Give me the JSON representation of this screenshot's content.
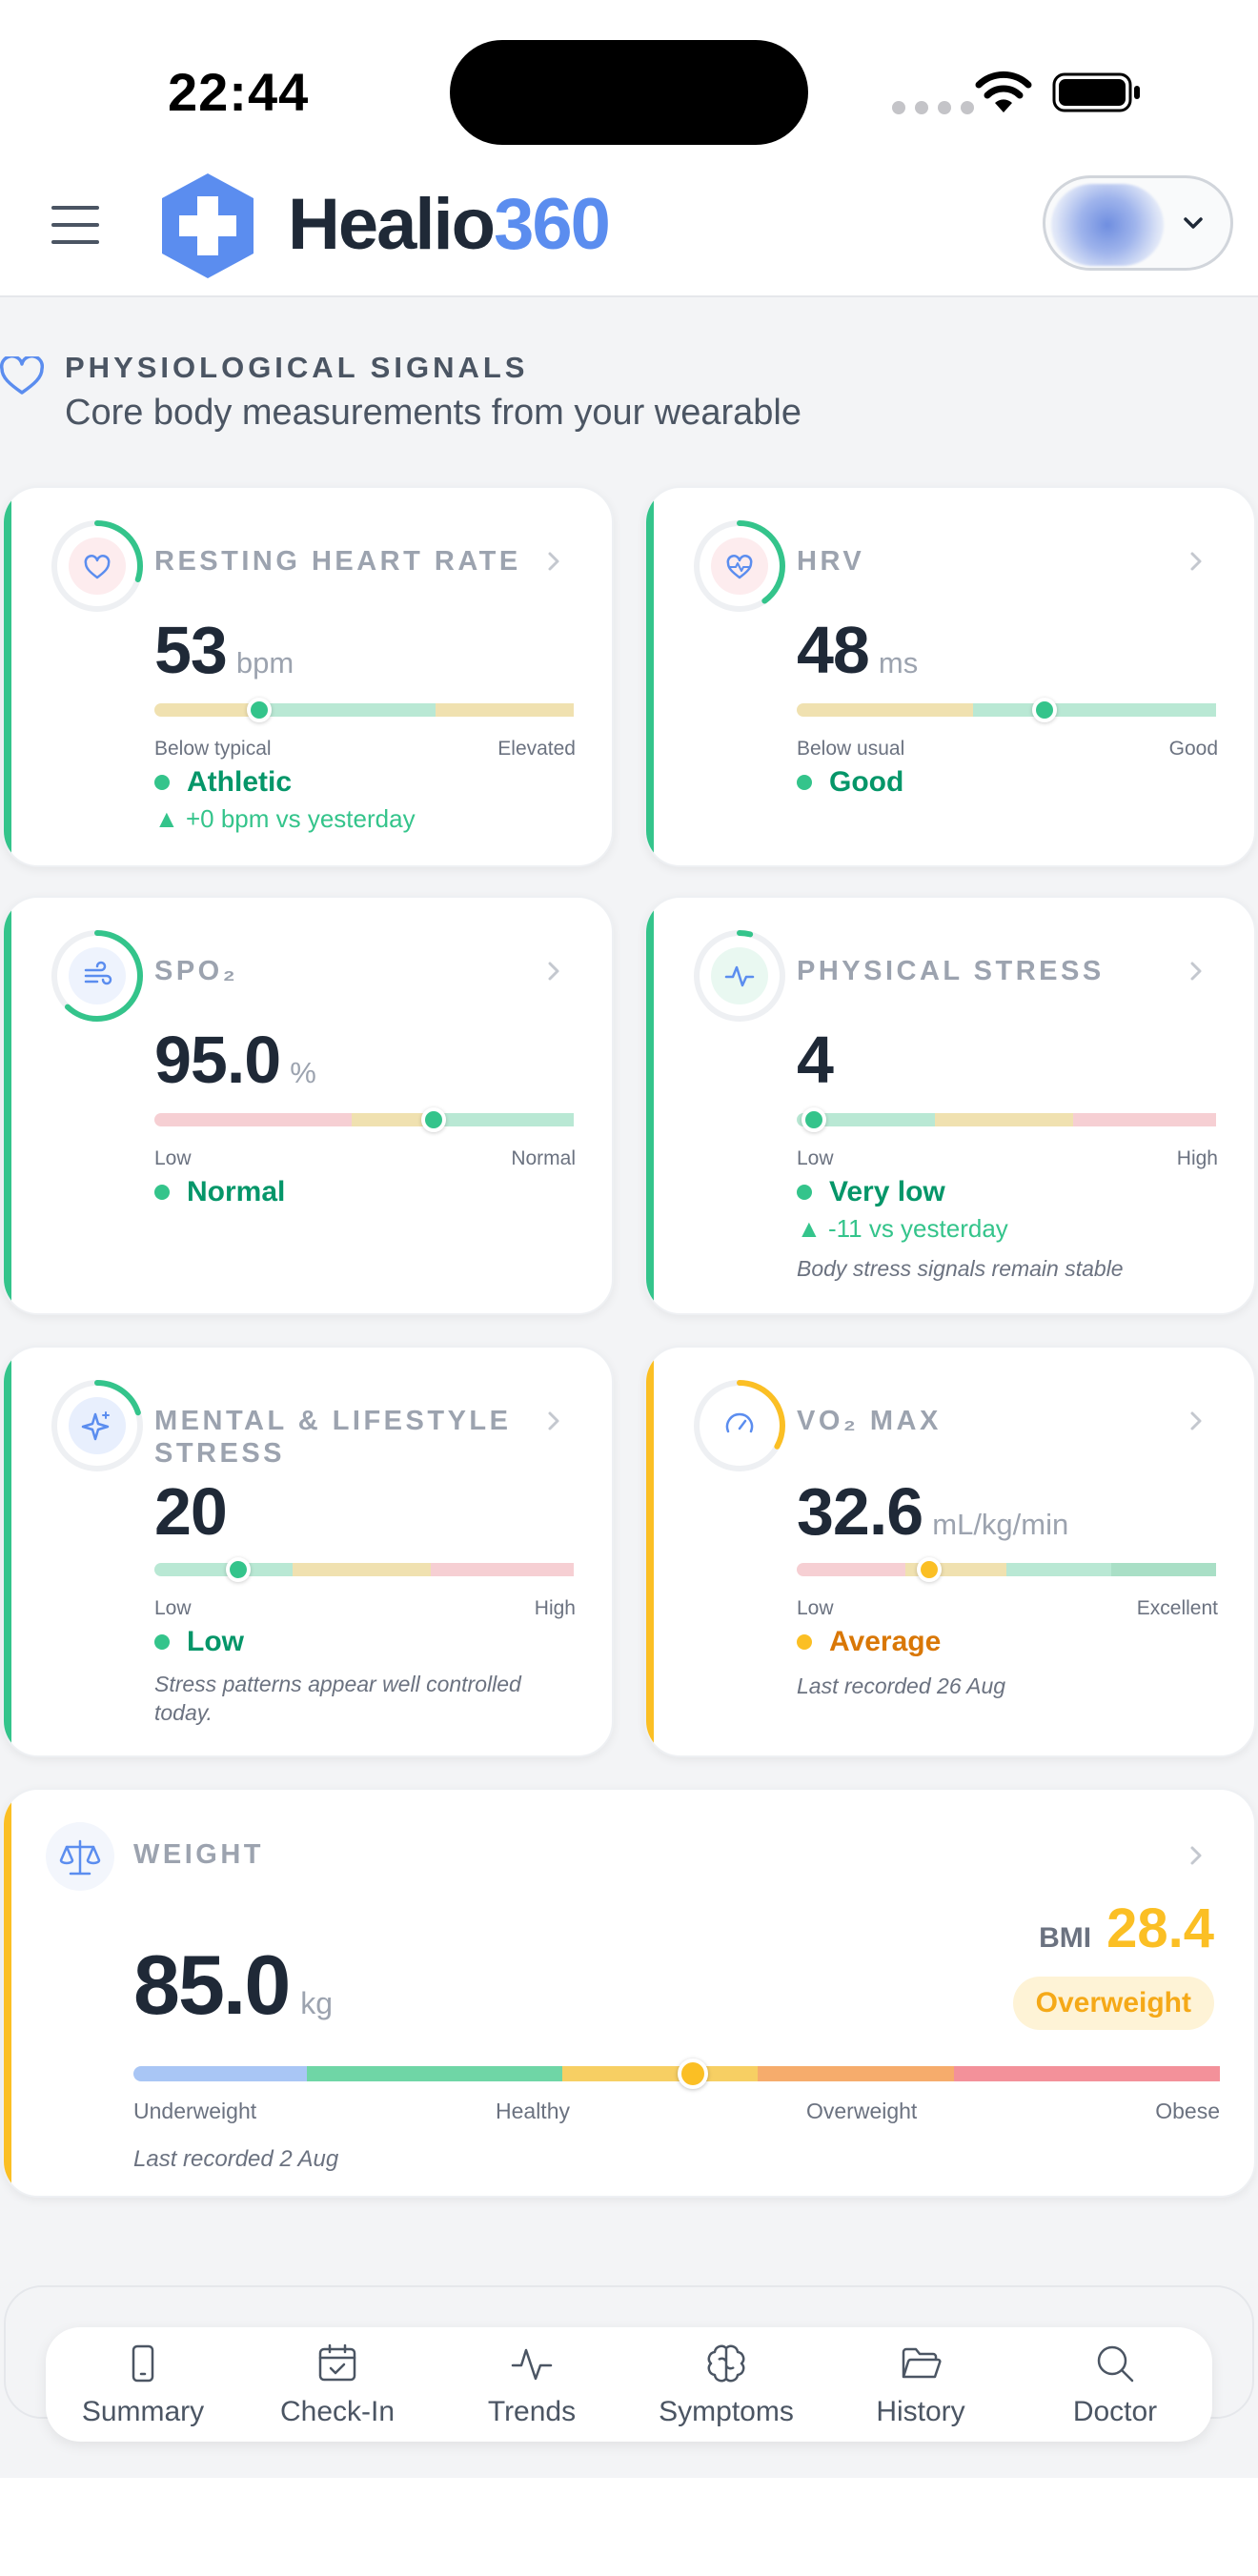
{
  "status_bar": {
    "time": "22:44"
  },
  "header": {
    "logo_word": "Healio",
    "logo_number": "360"
  },
  "section": {
    "title": "PHYSIOLOGICAL SIGNALS",
    "subtitle": "Core body measurements from your wearable"
  },
  "colors": {
    "good": "#34c48b",
    "warning": "#fbbf24",
    "brand": "#5b8def",
    "good_text": "#059669",
    "warning_text": "#d97706"
  },
  "cards": {
    "rhr": {
      "title": "RESTING HEART RATE",
      "icon": "heart-icon",
      "value": "53",
      "unit": "bpm",
      "min_label": "Below typical",
      "max_label": "Elevated",
      "status": "Athletic",
      "delta": "▲ +0 bpm vs yesterday",
      "marker_fraction": 0.25,
      "ring_fraction": 0.3
    },
    "hrv": {
      "title": "HRV",
      "icon": "heart-pulse-icon",
      "value": "48",
      "unit": "ms",
      "min_label": "Below usual",
      "max_label": "Good",
      "status": "Good",
      "marker_fraction": 0.59,
      "ring_fraction": 0.4
    },
    "spo2": {
      "title": "SPO₂",
      "icon": "wind-icon",
      "value": "95.0",
      "unit": "%",
      "min_label": "Low",
      "max_label": "Normal",
      "status": "Normal",
      "marker_fraction": 0.665,
      "ring_fraction": 0.62
    },
    "physical_stress": {
      "title": "PHYSICAL STRESS",
      "icon": "activity-icon",
      "value": "4",
      "unit": "",
      "min_label": "Low",
      "max_label": "High",
      "status": "Very low",
      "delta": "▲ -11 vs yesterday",
      "note": "Body stress signals remain stable",
      "marker_fraction": 0.04,
      "ring_fraction": 0.04
    },
    "mental_stress": {
      "title": "MENTAL & LIFESTYLE STRESS",
      "icon": "sparkles-icon",
      "value": "20",
      "unit": "",
      "min_label": "Low",
      "max_label": "High",
      "status": "Low",
      "note": "Stress patterns appear well controlled today.",
      "marker_fraction": 0.2,
      "ring_fraction": 0.2
    },
    "vo2": {
      "title": "VO₂ MAX",
      "icon": "gauge-icon",
      "value": "32.6",
      "unit": "mL/kg/min",
      "min_label": "Low",
      "max_label": "Excellent",
      "status": "Average",
      "note": "Last recorded 26 Aug",
      "marker_fraction": 0.315,
      "ring_fraction": 0.33
    },
    "weight": {
      "title": "WEIGHT",
      "icon": "scale-icon",
      "value": "85.0",
      "unit": "kg",
      "bmi_label": "BMI",
      "bmi_value": "28.4",
      "bmi_category": "Overweight",
      "labels": [
        "Underweight",
        "Healthy",
        "Overweight",
        "Obese"
      ],
      "note": "Last recorded 2 Aug",
      "marker_fraction": 0.515
    }
  },
  "nav": [
    {
      "label": "Summary",
      "icon": "phone-icon"
    },
    {
      "label": "Check-In",
      "icon": "calendar-check-icon"
    },
    {
      "label": "Trends",
      "icon": "activity-icon"
    },
    {
      "label": "Symptoms",
      "icon": "brain-icon"
    },
    {
      "label": "History",
      "icon": "folder-open-icon"
    },
    {
      "label": "Doctor",
      "icon": "search-icon"
    }
  ]
}
